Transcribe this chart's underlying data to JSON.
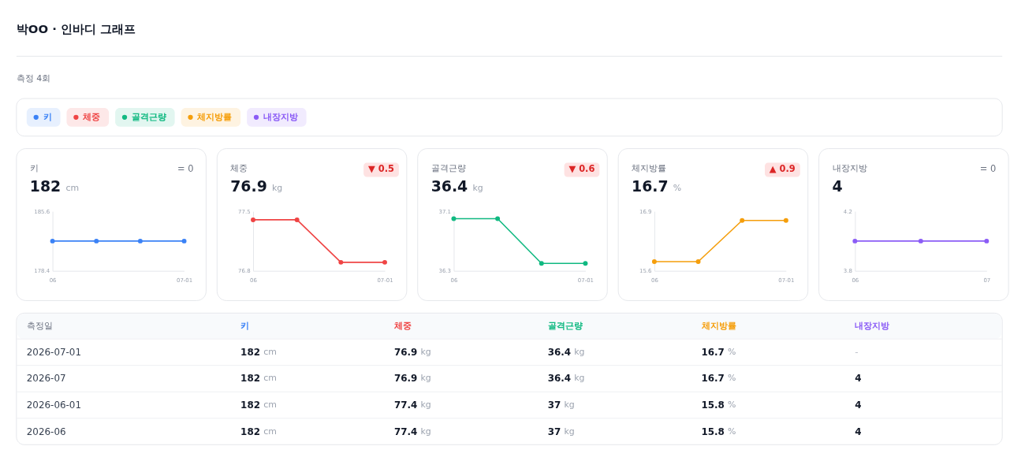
{
  "chart_data": [
    {
      "type": "other",
      "title": "박OO · 인바디 그래프",
      "subtitle": "측정 4회"
    },
    {
      "type": "line",
      "title": "키",
      "annotations": [
        "182 cm",
        "= 0"
      ],
      "categories": [
        "06",
        null,
        null,
        "07-01"
      ],
      "series": [
        {
          "name": "키",
          "color": "#3b82f6",
          "values": [
            182,
            182,
            182,
            182
          ]
        }
      ],
      "ylim": [
        178.4,
        185.6
      ],
      "yticks": [
        178.4,
        185.6
      ],
      "marker": "circle",
      "legend": "top"
    },
    {
      "type": "line",
      "title": "체중",
      "annotations": [
        "76.9 kg",
        "▼ 0.5"
      ],
      "categories": [
        "06",
        null,
        null,
        "07-01"
      ],
      "series": [
        {
          "name": "체중",
          "color": "#ef4444",
          "values": [
            77.4,
            77.4,
            76.9,
            76.9
          ]
        }
      ],
      "ylim": [
        76.8,
        77.5
      ],
      "yticks": [
        76.8,
        77.5
      ],
      "marker": "circle",
      "legend": "top"
    },
    {
      "type": "line",
      "title": "골격근량",
      "annotations": [
        "36.4 kg",
        "▼ 0.6"
      ],
      "categories": [
        "06",
        null,
        null,
        "07-01"
      ],
      "series": [
        {
          "name": "골격근량",
          "color": "#10b981",
          "values": [
            37,
            37,
            36.4,
            36.4
          ]
        }
      ],
      "ylim": [
        36.3,
        37.1
      ],
      "yticks": [
        36.3,
        37.1
      ],
      "marker": "circle",
      "legend": "top"
    },
    {
      "type": "line",
      "title": "체지방률",
      "annotations": [
        "16.7 %",
        "▲ 0.9"
      ],
      "categories": [
        "06",
        null,
        null,
        "07-01"
      ],
      "series": [
        {
          "name": "체지방률",
          "color": "#f59e0b",
          "values": [
            15.8,
            15.8,
            16.7,
            16.7
          ]
        }
      ],
      "ylim": [
        15.6,
        16.9
      ],
      "yticks": [
        15.6,
        16.9
      ],
      "marker": "circle",
      "legend": "top"
    },
    {
      "type": "line",
      "title": "내장지방",
      "annotations": [
        "4",
        "= 0"
      ],
      "categories": [
        "06",
        null,
        "07"
      ],
      "series": [
        {
          "name": "내장지방",
          "color": "#8b5cf6",
          "values": [
            4,
            4,
            4
          ]
        }
      ],
      "ylim": [
        3.8,
        4.2
      ],
      "yticks": [
        3.8,
        4.2
      ],
      "marker": "circle",
      "legend": "top"
    },
    {
      "type": "other",
      "ylabel": "측정일",
      "categories": [
        "키",
        "체중",
        "골격근량",
        "체지방률",
        "내장지방"
      ],
      "y_categories": [
        "2026-07-01",
        "2026-07",
        "2026-06-01",
        "2026-06"
      ],
      "cell_labels": [
        [
          "182 cm",
          "76.9 kg",
          "36.4 kg",
          "16.7 %",
          "-"
        ],
        [
          "182 cm",
          "76.9 kg",
          "36.4 kg",
          "16.7 %",
          "4"
        ],
        [
          "182 cm",
          "77.4 kg",
          "37 kg",
          "15.8 %",
          "4"
        ],
        [
          "182 cm",
          "77.4 kg",
          "37 kg",
          "15.8 %",
          "4"
        ]
      ]
    }
  ]
}
